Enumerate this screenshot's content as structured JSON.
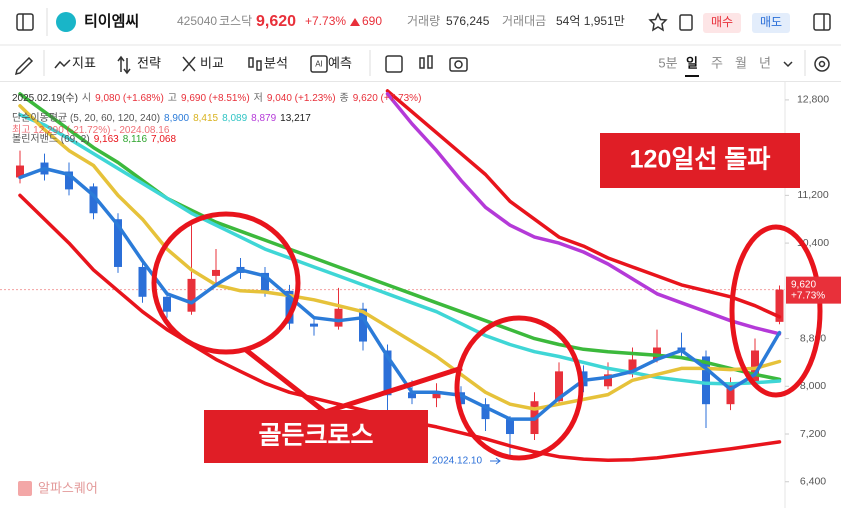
{
  "header": {
    "name": "티이엠씨",
    "code": "425040",
    "market": "코스닥",
    "price": "9,620",
    "change_pct": "+7.73%",
    "change_abs": "690",
    "volume_label": "거래량",
    "volume": "576,245",
    "amount_label": "거래대금",
    "amount": "54억 1,951만",
    "buy": "매수",
    "sell": "매도"
  },
  "toolbar": {
    "tools": [
      "지표",
      "전략",
      "비교",
      "분석",
      "예측"
    ],
    "periods": [
      "5분",
      "일",
      "주",
      "월",
      "년"
    ],
    "active_period": 1
  },
  "watermark": "알파스퀘어",
  "chart_data": {
    "type": "candlestick",
    "ylim": [
      5960,
      13100
    ],
    "yticks": [
      {
        "value": 6400,
        "label": "6,400"
      },
      {
        "value": 7200,
        "label": "7,200"
      },
      {
        "value": 8000,
        "label": "8,000"
      },
      {
        "value": 8800,
        "label": "8,800"
      },
      {
        "value": 10400,
        "label": "10,400"
      },
      {
        "value": 11200,
        "label": "11,200"
      },
      {
        "value": 12800,
        "label": "12,800"
      }
    ],
    "up_color": "#e8303a",
    "down_color": "#2b6fd8",
    "candles": [
      [
        11500,
        11950,
        11400,
        11700
      ],
      [
        11750,
        11900,
        11450,
        11550
      ],
      [
        11600,
        11750,
        11200,
        11300
      ],
      [
        11350,
        11400,
        10800,
        10900
      ],
      [
        10800,
        10900,
        9900,
        10000
      ],
      [
        10000,
        10100,
        9400,
        9500
      ],
      [
        9500,
        9600,
        9150,
        9250
      ],
      [
        9250,
        10700,
        9200,
        9800
      ],
      [
        9850,
        10300,
        9700,
        9950
      ],
      [
        10000,
        10150,
        9800,
        9900
      ],
      [
        9900,
        10000,
        9500,
        9600
      ],
      [
        9600,
        9700,
        8950,
        9050
      ],
      [
        9050,
        9150,
        8850,
        9000
      ],
      [
        9000,
        9650,
        8950,
        9300
      ],
      [
        9300,
        9400,
        8600,
        8750
      ],
      [
        8600,
        8700,
        7600,
        7850
      ],
      [
        7900,
        8100,
        7700,
        7800
      ],
      [
        7800,
        8050,
        7650,
        7900
      ],
      [
        7900,
        8000,
        7450,
        7700
      ],
      [
        7700,
        7800,
        7250,
        7450
      ],
      [
        7450,
        7500,
        6800,
        7200
      ],
      [
        7200,
        7900,
        7100,
        7750
      ],
      [
        7750,
        8400,
        7700,
        8250
      ],
      [
        8250,
        8350,
        7900,
        8000
      ],
      [
        8000,
        8400,
        7950,
        8200
      ],
      [
        8200,
        8650,
        8150,
        8450
      ],
      [
        8450,
        8950,
        8400,
        8650
      ],
      [
        8650,
        8900,
        8500,
        8600
      ],
      [
        8500,
        8600,
        7300,
        7700
      ],
      [
        7700,
        8150,
        7600,
        8050
      ],
      [
        8050,
        8800,
        8000,
        8600
      ],
      [
        9080,
        9690,
        9040,
        9620
      ]
    ],
    "series": [
      {
        "color": "#e8141c",
        "values": [
          11200,
          10800,
          10400,
          9950,
          9600,
          9250,
          8950,
          8700,
          8450,
          8250,
          8050,
          7900,
          7800,
          7700,
          7600,
          7500,
          7400,
          7320,
          7220,
          7120,
          7000,
          6900,
          6820,
          6780,
          6760,
          6770,
          6800,
          6850,
          6900,
          6950,
          7010,
          7068
        ]
      },
      {
        "color": "#e8141c",
        "values": [
          null,
          null,
          null,
          null,
          null,
          null,
          null,
          null,
          null,
          null,
          null,
          null,
          null,
          null,
          null,
          12950,
          12600,
          12250,
          11900,
          11550,
          11100,
          10800,
          10500,
          10350,
          10150,
          10000,
          9850,
          9700,
          9600,
          9500,
          9350,
          9163
        ]
      },
      {
        "color": "#3cb93c",
        "values": [
          12900,
          12600,
          12300,
          12000,
          11750,
          11450,
          11150,
          10950,
          10750,
          10600,
          10450,
          10300,
          10150,
          10000,
          9850,
          9700,
          9550,
          9400,
          9250,
          9100,
          8950,
          8800,
          8700,
          8620,
          8580,
          8550,
          8520,
          8480,
          8400,
          8300,
          8200,
          8116
        ]
      },
      {
        "color": "#3fd6d6",
        "values": [
          12550,
          12380,
          12150,
          11900,
          11650,
          11400,
          11150,
          10900,
          10700,
          10500,
          10300,
          10150,
          10000,
          9850,
          9700,
          9550,
          9400,
          9250,
          9050,
          8850,
          8700,
          8580,
          8500,
          8400,
          8300,
          8230,
          8150,
          8100,
          8050,
          8040,
          8060,
          8089
        ]
      },
      {
        "color": "#b43ad8",
        "values": [
          null,
          null,
          null,
          null,
          null,
          null,
          null,
          null,
          null,
          null,
          null,
          null,
          null,
          null,
          null,
          12900,
          12400,
          11950,
          11450,
          11000,
          10700,
          10500,
          10400,
          10250,
          10050,
          9800,
          9550,
          9400,
          9250,
          9100,
          8980,
          8879
        ]
      },
      {
        "color": "#e6c23a",
        "values": [
          12700,
          12300,
          11950,
          11700,
          11200,
          10800,
          10300,
          9950,
          9700,
          9600,
          9580,
          9520,
          9450,
          9350,
          9250,
          9000,
          8750,
          8500,
          8200,
          7900,
          7700,
          7620,
          7700,
          7780,
          7860,
          8100,
          8200,
          8300,
          8300,
          8280,
          8300,
          8415
        ]
      },
      {
        "color": "#2b7bd8",
        "values": [
          11500,
          11650,
          11550,
          11200,
          10700,
          10100,
          9550,
          9400,
          9700,
          9950,
          9850,
          9500,
          9150,
          9100,
          9150,
          8500,
          7900,
          7900,
          7850,
          7650,
          7450,
          7450,
          7800,
          8100,
          8150,
          8250,
          8450,
          8600,
          8300,
          7950,
          8200,
          8900
        ]
      }
    ],
    "ohlc_legend": {
      "date": "2025.02.19(수)",
      "items": [
        {
          "label": "시",
          "value": "9,080 (+1.68%)"
        },
        {
          "label": "고",
          "value": "9,690 (+8.51%)"
        },
        {
          "label": "저",
          "value": "9,040 (+1.23%)"
        },
        {
          "label": "종",
          "value": "9,620 (+7.73%)"
        }
      ]
    },
    "ma_legend": {
      "label": "단순이동평균 (5, 20, 60, 120, 240)",
      "values": [
        "8,900",
        "8,415",
        "8,089",
        "8,879",
        "13,217"
      ],
      "colors": [
        "#2b7bd8",
        "#d9b21f",
        "#2fc4c4",
        "#b43ad8",
        "#222222"
      ]
    },
    "high_note": "최고 12,290 (-21.72%) - 2024.08.16",
    "bb_legend": {
      "label": "볼린저밴드 (69, 2)",
      "values": [
        "9,163",
        "8,116",
        "7,068"
      ],
      "colors": [
        "#e8141c",
        "#2ea52e",
        "#e8141c"
      ]
    },
    "last_price_label": {
      "price": "9,620",
      "change": "+7.73%"
    },
    "low_label": "2024.12.10",
    "annotations": [
      "120일선 돌파",
      "골든크로스"
    ]
  }
}
